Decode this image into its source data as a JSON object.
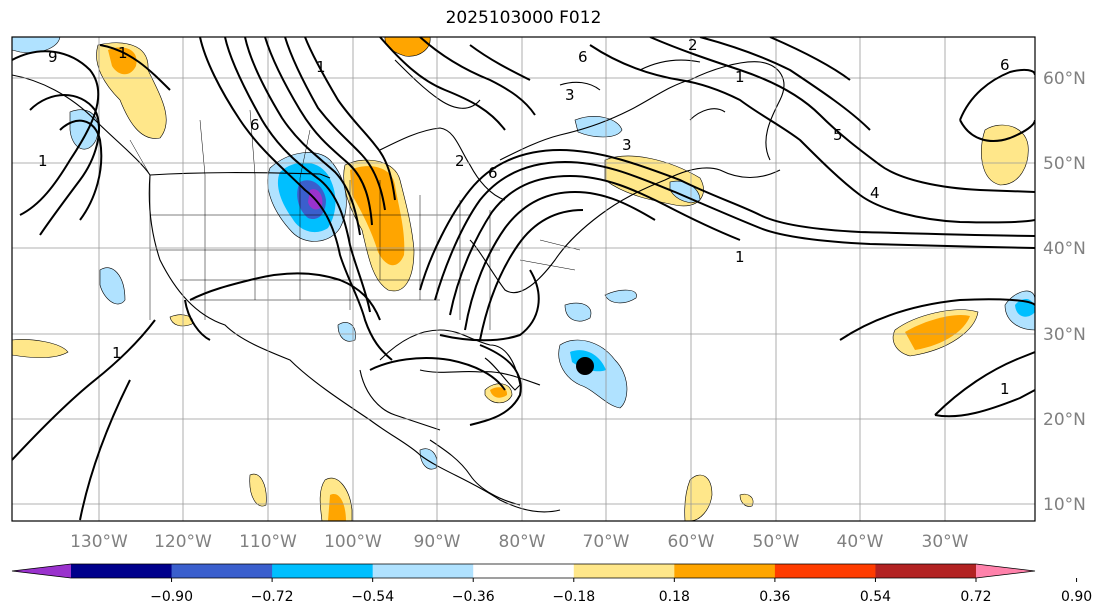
{
  "title": "2025103000 F012",
  "lon_labels": [
    "130°W",
    "120°W",
    "110°W",
    "100°W",
    "90°W",
    "80°W",
    "70°W",
    "60°W",
    "50°W",
    "40°W",
    "30°W"
  ],
  "lat_labels": [
    "60°N",
    "50°N",
    "40°N",
    "30°N",
    "20°N",
    "10°N"
  ],
  "colorbar": {
    "colors": [
      "#9a32cd",
      "#00008b",
      "#3a5fcd",
      "#00bfff",
      "#b0e2ff",
      "#ffffff",
      "#ffe78a",
      "#ffa500",
      "#ff3c00",
      "#b22222",
      "#ff82ab"
    ],
    "labels": [
      "−0.90",
      "−0.72",
      "−0.54",
      "−0.36",
      "−0.18",
      "0.18",
      "0.36",
      "0.54",
      "0.72",
      "0.90"
    ]
  },
  "contour_labels": [
    "1",
    "6",
    "3",
    "9",
    "2",
    "4",
    "5"
  ],
  "colors": {
    "coast": "#000000",
    "grid": "#999999",
    "contour": "#000000",
    "marker": "#000000"
  }
}
